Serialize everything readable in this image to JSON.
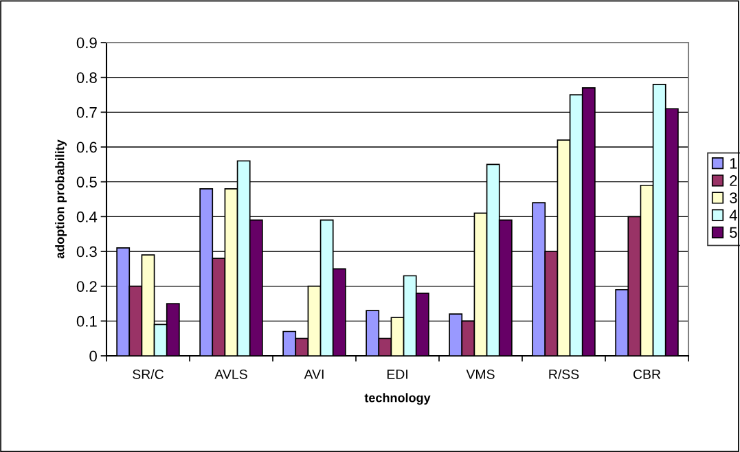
{
  "chart_data": {
    "type": "bar",
    "xlabel": "technology",
    "ylabel": "adoption probability",
    "categories": [
      "SR/C",
      "AVLS",
      "AVI",
      "EDI",
      "VMS",
      "R/SS",
      "CBR"
    ],
    "series": [
      {
        "name": "1",
        "color": "#9999ff",
        "values": [
          0.31,
          0.48,
          0.07,
          0.13,
          0.12,
          0.44,
          0.19
        ]
      },
      {
        "name": "2",
        "color": "#993366",
        "values": [
          0.2,
          0.28,
          0.05,
          0.05,
          0.1,
          0.3,
          0.4
        ]
      },
      {
        "name": "3",
        "color": "#ffffcc",
        "values": [
          0.29,
          0.48,
          0.2,
          0.11,
          0.41,
          0.62,
          0.49
        ]
      },
      {
        "name": "4",
        "color": "#ccffff",
        "values": [
          0.09,
          0.56,
          0.39,
          0.23,
          0.55,
          0.75,
          0.78
        ]
      },
      {
        "name": "5",
        "color": "#660066",
        "values": [
          0.15,
          0.39,
          0.25,
          0.18,
          0.39,
          0.77,
          0.71
        ]
      }
    ],
    "ylim": [
      0,
      0.9
    ],
    "yticks": [
      0,
      0.1,
      0.2,
      0.3,
      0.4,
      0.5,
      0.6,
      0.7,
      0.8,
      0.9
    ],
    "grid": "y",
    "legend": "right"
  }
}
